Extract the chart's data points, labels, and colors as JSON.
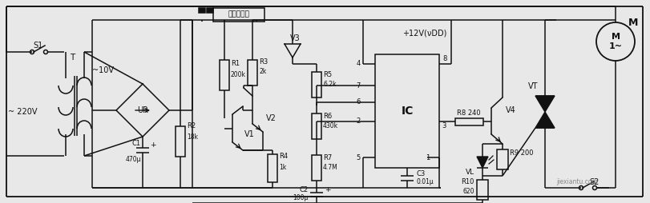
{
  "bg": "#e8e8e8",
  "lc": "#111111",
  "tc": "#111111",
  "lw": 1.1,
  "labels": {
    "S1": "S1",
    "T": "T",
    "ac220": "~ 220V",
    "ac10": "~10V",
    "UR": "UR",
    "C1": "C1",
    "C1v": "470μ",
    "R2": "R2",
    "R2v": "18k",
    "sensor": "湿度传感器",
    "R1": "R1",
    "R1v": "200k",
    "R3": "R3",
    "R3v": "2k",
    "V1": "V1",
    "V2": "V2",
    "V3": "V3",
    "R4": "R4",
    "R4v": "1k",
    "R5": "R5",
    "R5v": "6.2k",
    "R6": "R6",
    "R6v": "430k",
    "R7": "R7",
    "R7v": "4.7M",
    "C2": "C2",
    "C2v": "100μ",
    "C3": "C3",
    "C3v": "0.01μ",
    "IC": "IC",
    "VDD": "+12V(νDD)",
    "R8": "R8",
    "R8v": "240",
    "V4": "V4",
    "R9": "R9",
    "R9v": "200",
    "VL": "VL",
    "R10": "R10",
    "R10v": "620",
    "VT": "VT",
    "S2": "S2",
    "M_inner": "M\n1~",
    "M_label": "M",
    "pin4": "4",
    "pin7": "7",
    "pin8": "8",
    "pin6": "6",
    "pin2": "2",
    "pin3": "3",
    "pin1": "1",
    "pin5": "5"
  }
}
